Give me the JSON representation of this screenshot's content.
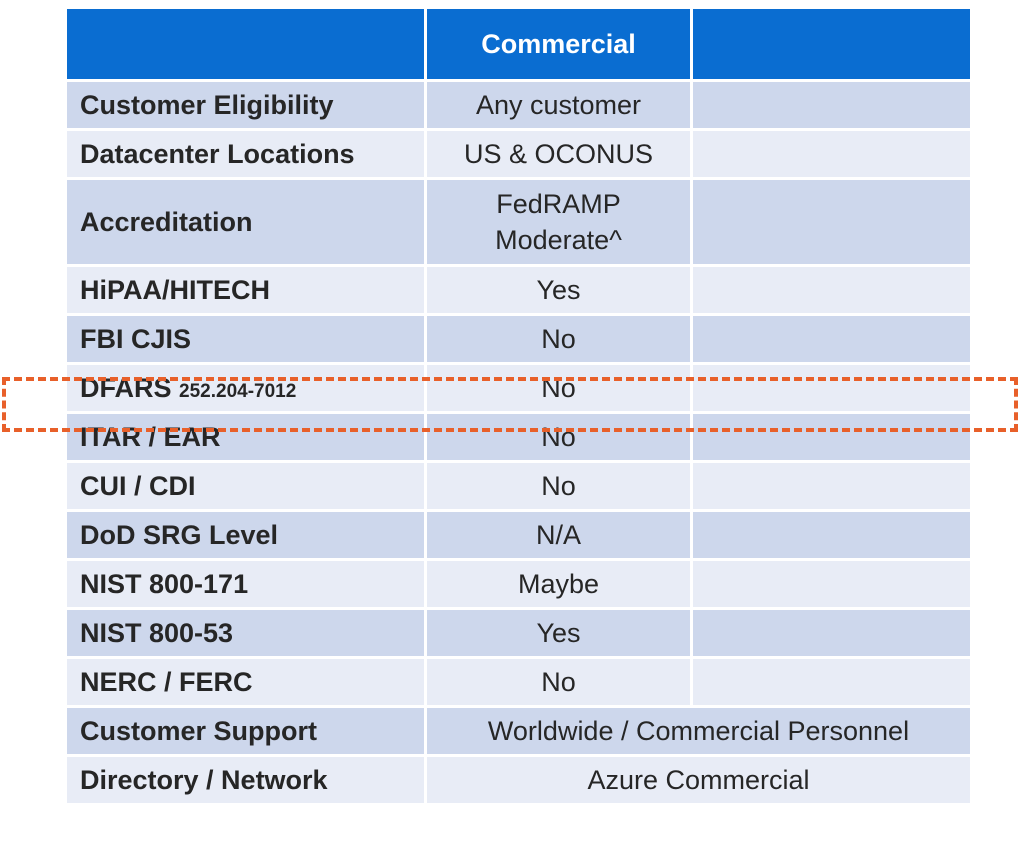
{
  "header": {
    "col1": "",
    "col2": "Commercial",
    "col3": ""
  },
  "rows": [
    {
      "label": "Customer Eligibility",
      "value": "Any customer",
      "extra": ""
    },
    {
      "label": "Datacenter Locations",
      "value": "US & OCONUS",
      "extra": ""
    },
    {
      "label": "Accreditation",
      "value_line1": "FedRAMP",
      "value_line2": "Moderate^",
      "extra": ""
    },
    {
      "label": "HiPAA/HITECH",
      "value": "Yes",
      "extra": ""
    },
    {
      "label": "FBI CJIS",
      "value": "No",
      "extra": ""
    },
    {
      "label": "DFARS",
      "label_sub": "252.204-7012",
      "value": "No",
      "extra": ""
    },
    {
      "label": "ITAR / EAR",
      "value": "No",
      "extra": ""
    },
    {
      "label": "CUI / CDI",
      "value": "No",
      "extra": ""
    },
    {
      "label": "DoD SRG Level",
      "value": "N/A",
      "extra": ""
    },
    {
      "label": "NIST 800-171",
      "value": "Maybe",
      "extra": ""
    },
    {
      "label": "NIST 800-53",
      "value": "Yes",
      "extra": ""
    },
    {
      "label": "NERC / FERC",
      "value": "No",
      "extra": ""
    },
    {
      "label": "Customer Support",
      "value": "Worldwide / Commercial Personnel"
    },
    {
      "label": "Directory / Network",
      "value": "Azure Commercial"
    }
  ],
  "highlight": {
    "row": "DFARS",
    "color": "#e8602a"
  },
  "colors": {
    "header": "#0a6dd1",
    "row_dark": "#cdd7ec",
    "row_light": "#e8ecf6"
  }
}
